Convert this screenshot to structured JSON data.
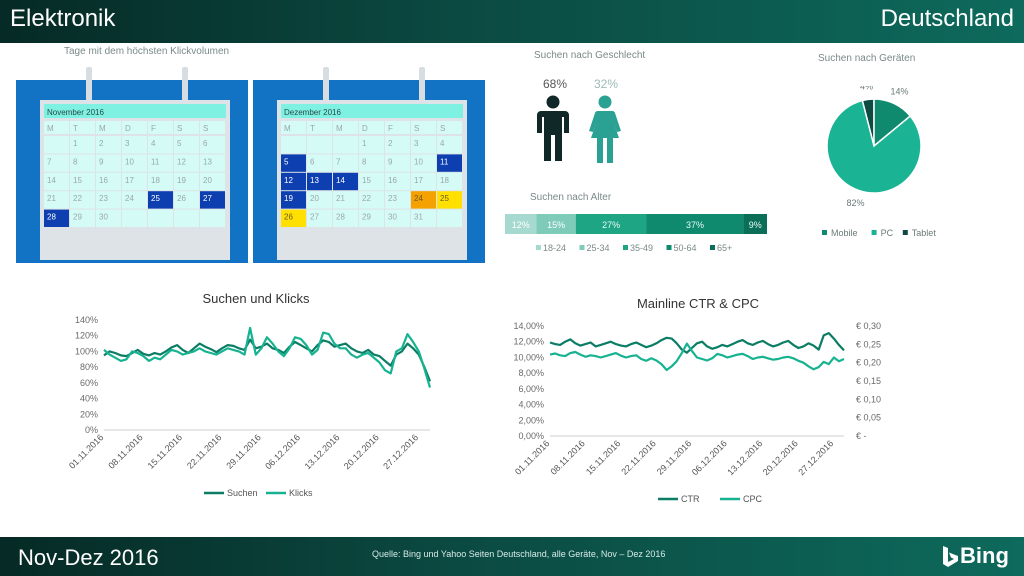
{
  "header": {
    "left_title": "Elektronik",
    "right_title": "Deutschland"
  },
  "footer": {
    "period": "Nov-Dez 2016",
    "source": "Quelle: Bing und Yahoo Seiten Deutschland, alle Geräte,  Nov – Dez 2016",
    "brand": "Bing"
  },
  "calendars": {
    "title": "Tage mit dem höchsten Klickvolumen",
    "weekdays": [
      "M",
      "T",
      "M",
      "D",
      "F",
      "S",
      "S"
    ],
    "november": {
      "month": "November 2016",
      "rows": [
        [
          "",
          "1",
          "2",
          "3",
          "4",
          "5",
          "6"
        ],
        [
          "7",
          "8",
          "9",
          "10",
          "11",
          "12",
          "13"
        ],
        [
          "14",
          "15",
          "16",
          "17",
          "18",
          "19",
          "20"
        ],
        [
          "21",
          "22",
          "23",
          "24",
          "25",
          "26",
          "27"
        ],
        [
          "28",
          "29",
          "30",
          "",
          "",
          "",
          ""
        ]
      ],
      "highlights": {
        "25": "dark",
        "27": "dark",
        "28": "dark"
      }
    },
    "december": {
      "month": "Dezember 2016",
      "rows": [
        [
          "",
          "",
          "",
          "1",
          "2",
          "3",
          "4"
        ],
        [
          "5",
          "6",
          "7",
          "8",
          "9",
          "10",
          "11"
        ],
        [
          "12",
          "13",
          "14",
          "15",
          "16",
          "17",
          "18"
        ],
        [
          "19",
          "20",
          "21",
          "22",
          "23",
          "24",
          "25"
        ],
        [
          "26",
          "27",
          "28",
          "29",
          "30",
          "31",
          ""
        ]
      ],
      "highlights": {
        "5": "dark",
        "11": "dark",
        "12": "dark",
        "13": "dark",
        "14": "dark",
        "19": "dark",
        "24": "orange",
        "25": "yellow",
        "26": "yellow"
      }
    }
  },
  "colors": {
    "dark_blue": "#0d3fb0",
    "frame_blue": "#1273c4",
    "orange": "#f5a100",
    "yellow": "#ffe000",
    "teal_dark": "#0b7d65",
    "teal": "#17b391"
  },
  "gender": {
    "title": "Suchen nach Geschlecht",
    "male_pct": "68%",
    "female_pct": "32%"
  },
  "age": {
    "title": "Suchen nach Alter"
  },
  "devices": {
    "title": "Suchen nach Geräten"
  },
  "chart_data": [
    {
      "type": "bar",
      "id": "age",
      "title": "Suchen nach Alter",
      "stacked": true,
      "categories": [
        "18-24",
        "25-34",
        "35-49",
        "50-64",
        "65+"
      ],
      "values": [
        12,
        15,
        27,
        37,
        9
      ],
      "labels": [
        "12%",
        "15%",
        "27%",
        "37%",
        "9%"
      ],
      "colors": [
        "#a6d9cf",
        "#7ecbb9",
        "#1ea584",
        "#0f8a6e",
        "#0b6e58"
      ]
    },
    {
      "type": "pie",
      "id": "devices",
      "title": "Suchen nach Geräten",
      "categories": [
        "Mobile",
        "PC",
        "Tablet"
      ],
      "values": [
        14,
        82,
        4
      ],
      "labels": [
        "14%",
        "82%",
        "4%"
      ],
      "colors": [
        "#0f8a6e",
        "#1ab393",
        "#0d4a41"
      ],
      "legend": "bottom"
    },
    {
      "type": "line",
      "id": "searches-clicks",
      "title": "Suchen und Klicks",
      "x_ticks": [
        "01.11.2016",
        "08.11.2016",
        "15.11.2016",
        "22.11.2016",
        "29.11.2016",
        "06.12.2016",
        "13.12.2016",
        "20.12.2016",
        "27.12.2016"
      ],
      "y_ticks": [
        "0%",
        "20%",
        "40%",
        "60%",
        "80%",
        "100%",
        "120%",
        "140%"
      ],
      "ylim": [
        0,
        140
      ],
      "legend": "bottom",
      "series": [
        {
          "name": "Suchen",
          "color": "#0b7d65",
          "values": [
            95,
            100,
            98,
            95,
            94,
            98,
            102,
            97,
            95,
            98,
            96,
            100,
            105,
            108,
            102,
            98,
            104,
            110,
            106,
            103,
            99,
            104,
            108,
            107,
            104,
            102,
            115,
            104,
            106,
            110,
            104,
            102,
            98,
            106,
            112,
            108,
            104,
            100,
            108,
            114,
            112,
            106,
            108,
            110,
            104,
            100,
            98,
            102,
            96,
            94,
            88,
            82,
            96,
            100,
            110,
            104,
            96,
            80,
            62
          ]
        },
        {
          "name": "Klicks",
          "color": "#17b391",
          "values": [
            102,
            96,
            92,
            88,
            90,
            100,
            98,
            94,
            88,
            92,
            90,
            96,
            102,
            100,
            96,
            98,
            100,
            104,
            100,
            98,
            96,
            100,
            104,
            102,
            100,
            96,
            130,
            96,
            104,
            118,
            110,
            100,
            94,
            104,
            118,
            116,
            108,
            96,
            102,
            124,
            122,
            110,
            104,
            104,
            96,
            92,
            96,
            98,
            92,
            86,
            76,
            72,
            100,
            104,
            122,
            112,
            100,
            78,
            54
          ]
        }
      ]
    },
    {
      "type": "line",
      "id": "ctr-cpc",
      "title": "Mainline CTR & CPC",
      "x_ticks": [
        "01.11.2016",
        "08.11.2016",
        "15.11.2016",
        "22.11.2016",
        "29.11.2016",
        "06.12.2016",
        "13.12.2016",
        "20.12.2016",
        "27.12.2016"
      ],
      "y_ticks_left": [
        "0,00%",
        "2,00%",
        "4,00%",
        "6,00%",
        "8,00%",
        "10,00%",
        "12,00%",
        "14,00%"
      ],
      "y_ticks_right": [
        "€ -",
        "€ 0,05",
        "€ 0,10",
        "€ 0,15",
        "€ 0,20",
        "€ 0,25",
        "€ 0,30"
      ],
      "ylim_left": [
        0,
        14
      ],
      "ylim_right": [
        0,
        0.3
      ],
      "legend": "bottom",
      "series": [
        {
          "name": "CTR",
          "axis": "left",
          "color": "#0b7d65",
          "values": [
            11.9,
            11.7,
            11.6,
            12.0,
            12.3,
            11.8,
            11.5,
            11.7,
            11.9,
            11.4,
            11.6,
            11.8,
            12.0,
            11.7,
            11.5,
            11.4,
            11.7,
            11.9,
            11.6,
            11.3,
            11.5,
            11.8,
            12.2,
            12.5,
            12.4,
            11.8,
            11.0,
            10.6,
            11.2,
            11.8,
            12.0,
            11.4,
            11.1,
            11.3,
            11.6,
            11.4,
            11.7,
            12.0,
            12.2,
            11.8,
            11.6,
            11.9,
            12.1,
            11.7,
            11.4,
            11.6,
            11.9,
            12.1,
            11.6,
            11.2,
            11.4,
            11.8,
            11.5,
            11.0,
            12.8,
            13.1,
            12.4,
            11.6,
            10.9
          ]
        },
        {
          "name": "CPC",
          "axis": "right",
          "color": "#17b391",
          "values": [
            0.222,
            0.225,
            0.22,
            0.218,
            0.226,
            0.229,
            0.222,
            0.216,
            0.22,
            0.218,
            0.214,
            0.218,
            0.222,
            0.226,
            0.219,
            0.214,
            0.218,
            0.22,
            0.21,
            0.205,
            0.212,
            0.206,
            0.196,
            0.18,
            0.19,
            0.204,
            0.226,
            0.252,
            0.232,
            0.214,
            0.21,
            0.206,
            0.212,
            0.224,
            0.22,
            0.214,
            0.218,
            0.222,
            0.224,
            0.218,
            0.21,
            0.214,
            0.216,
            0.212,
            0.208,
            0.21,
            0.214,
            0.216,
            0.212,
            0.205,
            0.2,
            0.19,
            0.182,
            0.188,
            0.202,
            0.196,
            0.214,
            0.204,
            0.21
          ]
        }
      ]
    }
  ]
}
